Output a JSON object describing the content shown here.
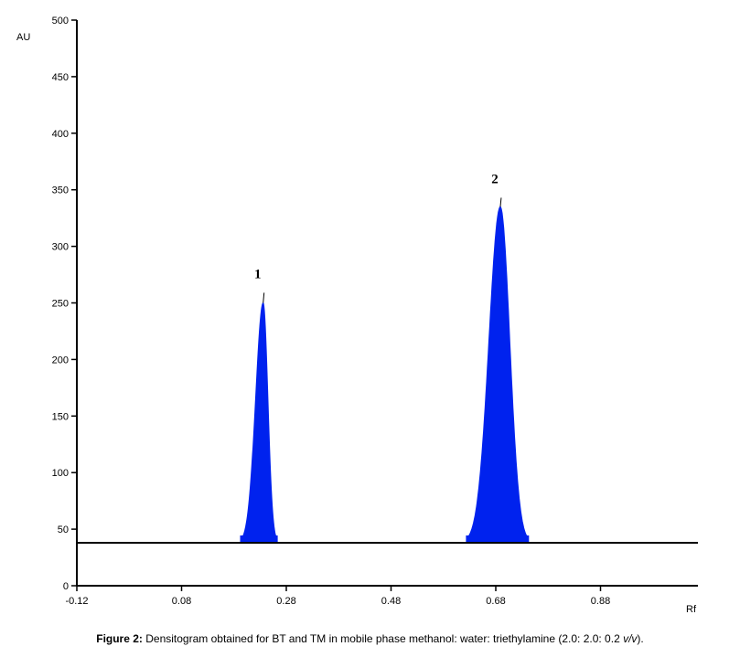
{
  "chart_data": {
    "type": "area",
    "xlabel": "Rf",
    "ylabel": "AU",
    "xlim": [
      -0.12,
      0.98
    ],
    "ylim": [
      0,
      500
    ],
    "x_ticks": [
      "-0.12",
      "0.08",
      "0.28",
      "0.48",
      "0.68",
      "0.88"
    ],
    "y_ticks": [
      "0",
      "50",
      "100",
      "150",
      "200",
      "250",
      "300",
      "350",
      "400",
      "450",
      "500"
    ],
    "baseline": 38,
    "fill_color": "#0022ee",
    "peaks": [
      {
        "label": "1",
        "rf": 0.21,
        "height": 250,
        "tip": 259,
        "start": 0.17,
        "end": 0.235
      },
      {
        "label": "2",
        "rf": 0.63,
        "height": 335,
        "tip": 343,
        "start": 0.57,
        "end": 0.68
      }
    ]
  },
  "caption": {
    "bold": "Figure 2:",
    "text": " Densitogram obtained for BT and TM in mobile phase methanol: water: triethylamine (2.0: 2.0: 0.2 ",
    "italic": "v/v",
    "end": ")."
  }
}
